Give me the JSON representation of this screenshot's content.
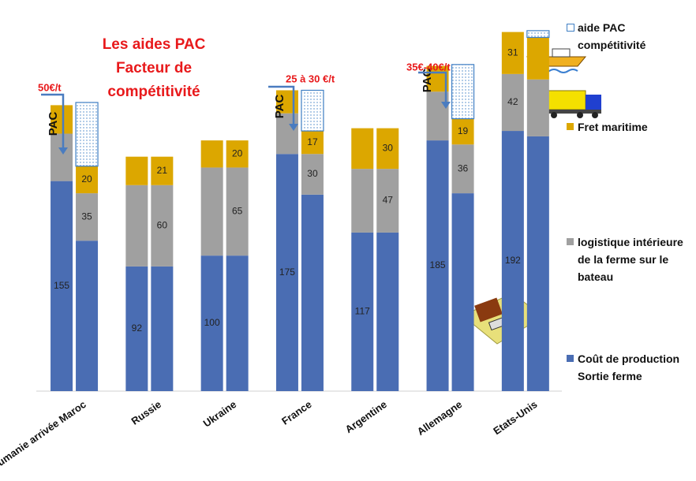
{
  "chart_data": {
    "type": "bar",
    "stacked": true,
    "title": "Les aides PAC Facteur de compétitivité",
    "categories": [
      "Roumanie arrivée Maroc",
      null,
      "Russie",
      null,
      "Ukraine",
      null,
      "France",
      null,
      "Argentine",
      null,
      "Allemagne",
      null,
      "Etats-Unis",
      null
    ],
    "ylim": [
      0,
      270
    ],
    "series": [
      {
        "name": "Coût de production Sortie ferme",
        "color": "#4a6db3",
        "values": [
          155,
          111,
          92,
          92,
          100,
          100,
          175,
          145,
          117,
          117,
          185,
          146,
          192,
          188
        ],
        "value_labels": [
          "155",
          null,
          "92",
          null,
          "100",
          null,
          "175",
          null,
          "117",
          null,
          "185",
          null,
          "192",
          null
        ]
      },
      {
        "name": "logistique intérieure de la ferme sur le bateau",
        "color": "#a0a0a0",
        "values": [
          35,
          35,
          60,
          60,
          65,
          65,
          30,
          30,
          47,
          47,
          36,
          36,
          42,
          42
        ],
        "value_labels": [
          null,
          "35",
          null,
          "60",
          null,
          "65",
          null,
          "30",
          null,
          "47",
          null,
          "36",
          "42",
          null
        ]
      },
      {
        "name": "Fret maritime",
        "color": "#dca700",
        "values": [
          21,
          20,
          21,
          21,
          20,
          20,
          17,
          17,
          30,
          30,
          19,
          19,
          31,
          31
        ],
        "value_labels": [
          null,
          "20",
          null,
          "21",
          null,
          "20",
          null,
          "17",
          null,
          "30",
          null,
          "19",
          "31",
          null
        ]
      },
      {
        "name": "aide PAC compétitivité",
        "color": "#3f7fc4",
        "pattern": "dots",
        "values": [
          null,
          47,
          null,
          null,
          null,
          null,
          null,
          30,
          null,
          null,
          null,
          40,
          null,
          5
        ]
      }
    ],
    "annotations": [
      "50€/t",
      "25 à 30 €/t",
      "35€-40€/t",
      "PAC",
      "PAC",
      "PAC"
    ]
  }
}
